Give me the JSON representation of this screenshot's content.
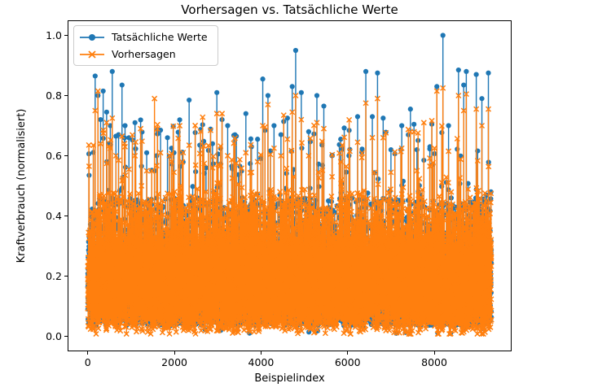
{
  "chart_data": {
    "type": "line",
    "title": "Vorhersagen vs. Tatsächliche Werte",
    "xlabel": "Beispielindex",
    "ylabel": "Kraftverbrauch (normalisiert)",
    "xlim": [
      -466,
      9786
    ],
    "ylim": [
      -0.05,
      1.05
    ],
    "xticks": {
      "values": [
        0,
        2000,
        4000,
        6000,
        8000
      ],
      "labels": [
        "0",
        "2000",
        "4000",
        "6000",
        "8000"
      ]
    },
    "yticks": {
      "values": [
        0.0,
        0.2,
        0.4,
        0.6,
        0.8,
        1.0
      ],
      "labels": [
        "0.0",
        "0.2",
        "0.4",
        "0.6",
        "0.8",
        "1.0"
      ]
    },
    "grid": false,
    "legend": {
      "position": "upper-left",
      "border_color": "#cccccc",
      "background": "#ffffff"
    },
    "axis_color": "#000000",
    "n_points": 9320,
    "series": [
      {
        "name": "Tatsächliche Werte",
        "color": "#1f77b4",
        "marker": "circle"
      },
      {
        "name": "Vorhersagen",
        "color": "#ff7f0e",
        "marker": "x"
      }
    ],
    "noise_band": {
      "seed": 42,
      "dip_prob": 0.0012,
      "dip_min": 0.004,
      "dip_max": 0.03,
      "core_prob": 0.885,
      "core_min": 0.035,
      "core_max": 0.3,
      "upper_prob": 0.104,
      "upper_min": 0.3,
      "upper_max": 0.46,
      "med_spike_prob": 0.0098,
      "med_spike_min": 0.46,
      "med_spike_max": 0.72,
      "prediction_noise": 0.07
    },
    "spikes": [
      {
        "x": 30,
        "actual": 0.535,
        "predicted": 0.565
      },
      {
        "x": 170,
        "actual": 0.865,
        "predicted": 0.75
      },
      {
        "x": 235,
        "actual": 0.8,
        "predicted": 0.815
      },
      {
        "x": 295,
        "actual": 0.72,
        "predicted": 0.64
      },
      {
        "x": 355,
        "actual": 0.815,
        "predicted": 0.685
      },
      {
        "x": 435,
        "actual": 0.745,
        "predicted": 0.71
      },
      {
        "x": 520,
        "actual": 0.7,
        "predicted": 0.625
      },
      {
        "x": 565,
        "actual": 0.88,
        "predicted": 0.725
      },
      {
        "x": 650,
        "actual": 0.665,
        "predicted": 0.6
      },
      {
        "x": 710,
        "actual": 0.67,
        "predicted": 0.585
      },
      {
        "x": 790,
        "actual": 0.835,
        "predicted": 0.665
      },
      {
        "x": 860,
        "actual": 0.7,
        "predicted": 0.63
      },
      {
        "x": 950,
        "actual": 0.66,
        "predicted": 0.555
      },
      {
        "x": 1090,
        "actual": 0.71,
        "predicted": 0.6
      },
      {
        "x": 1240,
        "actual": 0.565,
        "predicted": 0.5
      },
      {
        "x": 1360,
        "actual": 0.61,
        "predicted": 0.55
      },
      {
        "x": 1540,
        "actual": 0.55,
        "predicted": 0.79
      },
      {
        "x": 1680,
        "actual": 0.685,
        "predicted": 0.61
      },
      {
        "x": 1840,
        "actual": 0.66,
        "predicted": 0.475
      },
      {
        "x": 1990,
        "actual": 0.61,
        "predicted": 0.545
      },
      {
        "x": 2140,
        "actual": 0.565,
        "predicted": 0.5
      },
      {
        "x": 2340,
        "actual": 0.785,
        "predicted": 0.635
      },
      {
        "x": 2530,
        "actual": 0.46,
        "predicted": 0.49
      },
      {
        "x": 2730,
        "actual": 0.56,
        "predicted": 0.48
      },
      {
        "x": 2880,
        "actual": 0.64,
        "predicted": 0.56
      },
      {
        "x": 2980,
        "actual": 0.81,
        "predicted": 0.74
      },
      {
        "x": 3100,
        "actual": 0.72,
        "predicted": 0.74
      },
      {
        "x": 3230,
        "actual": 0.7,
        "predicted": 0.6
      },
      {
        "x": 3430,
        "actual": 0.665,
        "predicted": 0.575
      },
      {
        "x": 3650,
        "actual": 0.74,
        "predicted": 0.61
      },
      {
        "x": 3780,
        "actual": 0.63,
        "predicted": 0.545
      },
      {
        "x": 3920,
        "actual": 0.655,
        "predicted": 0.58
      },
      {
        "x": 4040,
        "actual": 0.855,
        "predicted": 0.7
      },
      {
        "x": 4160,
        "actual": 0.8,
        "predicted": 0.77
      },
      {
        "x": 4300,
        "actual": 0.7,
        "predicted": 0.625
      },
      {
        "x": 4460,
        "actual": 0.67,
        "predicted": 0.6
      },
      {
        "x": 4610,
        "actual": 0.725,
        "predicted": 0.655
      },
      {
        "x": 4720,
        "actual": 0.83,
        "predicted": 0.745
      },
      {
        "x": 4800,
        "actual": 0.95,
        "predicted": 0.8
      },
      {
        "x": 4930,
        "actual": 0.81,
        "predicted": 0.72
      },
      {
        "x": 5100,
        "actual": 0.68,
        "predicted": 0.6
      },
      {
        "x": 5290,
        "actual": 0.8,
        "predicted": 0.71
      },
      {
        "x": 5450,
        "actual": 0.765,
        "predicted": 0.69
      },
      {
        "x": 5640,
        "actual": 0.6,
        "predicted": 0.53
      },
      {
        "x": 5840,
        "actual": 0.655,
        "predicted": 0.58
      },
      {
        "x": 6030,
        "actual": 0.6,
        "predicted": 0.475
      },
      {
        "x": 6230,
        "actual": 0.73,
        "predicted": 0.645
      },
      {
        "x": 6420,
        "actual": 0.88,
        "predicted": 0.775
      },
      {
        "x": 6570,
        "actual": 0.73,
        "predicted": 0.66
      },
      {
        "x": 6690,
        "actual": 0.875,
        "predicted": 0.79
      },
      {
        "x": 6820,
        "actual": 0.725,
        "predicted": 0.66
      },
      {
        "x": 7000,
        "actual": 0.62,
        "predicted": 0.545
      },
      {
        "x": 7250,
        "actual": 0.7,
        "predicted": 0.625
      },
      {
        "x": 7450,
        "actual": 0.755,
        "predicted": 0.68
      },
      {
        "x": 7600,
        "actual": 0.62,
        "predicted": 0.55
      },
      {
        "x": 7760,
        "actual": 0.585,
        "predicted": 0.71
      },
      {
        "x": 7900,
        "actual": 0.63,
        "predicted": 0.565
      },
      {
        "x": 8060,
        "actual": 0.83,
        "predicted": 0.815
      },
      {
        "x": 8200,
        "actual": 1.0,
        "predicted": 0.825
      },
      {
        "x": 8330,
        "actual": 0.7,
        "predicted": 0.615
      },
      {
        "x": 8560,
        "actual": 0.885,
        "predicted": 0.8
      },
      {
        "x": 8680,
        "actual": 0.835,
        "predicted": 0.75
      },
      {
        "x": 8740,
        "actual": 0.88,
        "predicted": 0.805
      },
      {
        "x": 8970,
        "actual": 0.87,
        "predicted": 0.755
      },
      {
        "x": 9100,
        "actual": 0.79,
        "predicted": 0.7
      },
      {
        "x": 9250,
        "actual": 0.875,
        "predicted": 0.755
      },
      {
        "x": 9310,
        "actual": 0.48,
        "predicted": 0.475
      }
    ]
  }
}
